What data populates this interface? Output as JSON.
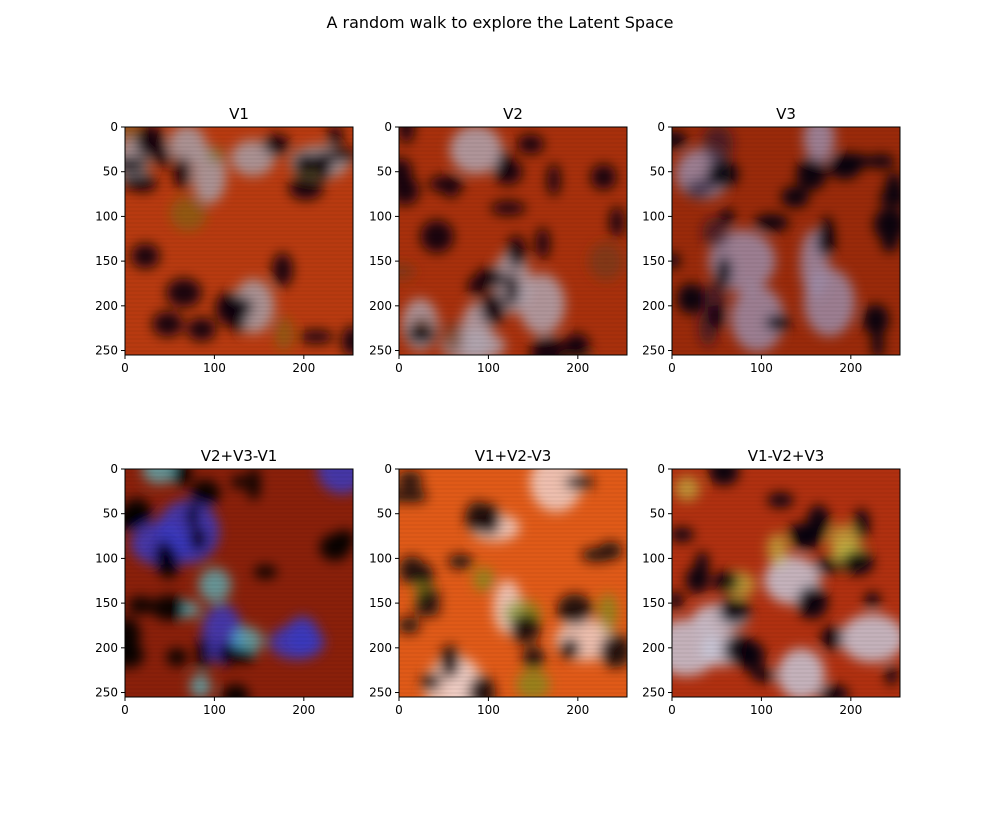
{
  "figure": {
    "suptitle": "A random walk to explore the Latent Space"
  },
  "chart_data": [
    {
      "type": "heatmap",
      "title": "V1",
      "xlim": [
        0,
        255
      ],
      "ylim": [
        255,
        0
      ],
      "xticks": [
        0,
        100,
        200
      ],
      "yticks": [
        0,
        50,
        100,
        150,
        200,
        250
      ],
      "image_colors": {
        "base": "#b83a10",
        "light": "#a8a0a8",
        "dark": "#0a0408",
        "accent": "#7a6a18"
      }
    },
    {
      "type": "heatmap",
      "title": "V2",
      "xlim": [
        0,
        255
      ],
      "ylim": [
        255,
        0
      ],
      "xticks": [
        0,
        100,
        200
      ],
      "yticks": [
        0,
        50,
        100,
        150,
        200,
        250
      ],
      "image_colors": {
        "base": "#a8300c",
        "light": "#b0a6b0",
        "dark": "#0a0408",
        "accent": "#6a3a1a"
      }
    },
    {
      "type": "heatmap",
      "title": "V3",
      "xlim": [
        0,
        255
      ],
      "ylim": [
        255,
        0
      ],
      "xticks": [
        0,
        100,
        200
      ],
      "yticks": [
        0,
        50,
        100,
        150,
        200,
        250
      ],
      "image_colors": {
        "base": "#9a2a0a",
        "light": "#9c8ca8",
        "dark": "#060208",
        "accent": "#1a1430"
      }
    },
    {
      "type": "heatmap",
      "title": "V2+V3-V1",
      "xlim": [
        0,
        255
      ],
      "ylim": [
        255,
        0
      ],
      "xticks": [
        0,
        100,
        200
      ],
      "yticks": [
        0,
        50,
        100,
        150,
        200,
        250
      ],
      "image_colors": {
        "base": "#8a200a",
        "light": "#3838c0",
        "dark": "#040206",
        "accent": "#50e0f0"
      }
    },
    {
      "type": "heatmap",
      "title": "V1+V2-V3",
      "xlim": [
        0,
        255
      ],
      "ylim": [
        255,
        0
      ],
      "xticks": [
        0,
        100,
        200
      ],
      "yticks": [
        0,
        50,
        100,
        150,
        200,
        250
      ],
      "image_colors": {
        "base": "#e05a18",
        "light": "#f0d0c8",
        "dark": "#1a0a08",
        "accent": "#6a9a20"
      }
    },
    {
      "type": "heatmap",
      "title": "V1-V2+V3",
      "xlim": [
        0,
        255
      ],
      "ylim": [
        255,
        0
      ],
      "xticks": [
        0,
        100,
        200
      ],
      "yticks": [
        0,
        50,
        100,
        150,
        200,
        250
      ],
      "image_colors": {
        "base": "#b03010",
        "light": "#c8c8d8",
        "dark": "#060208",
        "accent": "#c8d050"
      }
    }
  ]
}
